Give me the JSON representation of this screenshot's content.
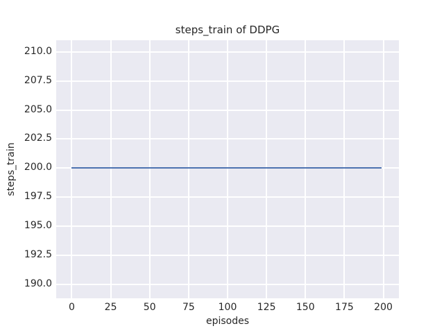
{
  "chart_data": {
    "type": "line",
    "title": "steps_train of DDPG",
    "xlabel": "episodes",
    "ylabel": "steps_train",
    "x_ticks": [
      0,
      25,
      50,
      75,
      100,
      125,
      150,
      175,
      200
    ],
    "x_tick_labels": [
      "0",
      "25",
      "50",
      "75",
      "100",
      "125",
      "150",
      "175",
      "200"
    ],
    "y_ticks": [
      190.0,
      192.5,
      195.0,
      197.5,
      200.0,
      202.5,
      205.0,
      207.5,
      210.0
    ],
    "y_tick_labels": [
      "190.0",
      "192.5",
      "195.0",
      "197.5",
      "200.0",
      "202.5",
      "205.0",
      "207.5",
      "210.0"
    ],
    "xlim": [
      -10,
      210
    ],
    "ylim": [
      188.8,
      211.0
    ],
    "grid": "on",
    "legend": "none",
    "series": [
      {
        "name": "steps_train",
        "x": [
          0,
          199
        ],
        "y": [
          200,
          200
        ],
        "note": "constant value 200 across all episodes 0-199",
        "color": "#4c72b0"
      }
    ],
    "colors": {
      "plot_background": "#eaeaf2",
      "figure_background": "#ffffff",
      "grid": "#ffffff",
      "text": "#262626",
      "line": "#4c72b0"
    }
  }
}
